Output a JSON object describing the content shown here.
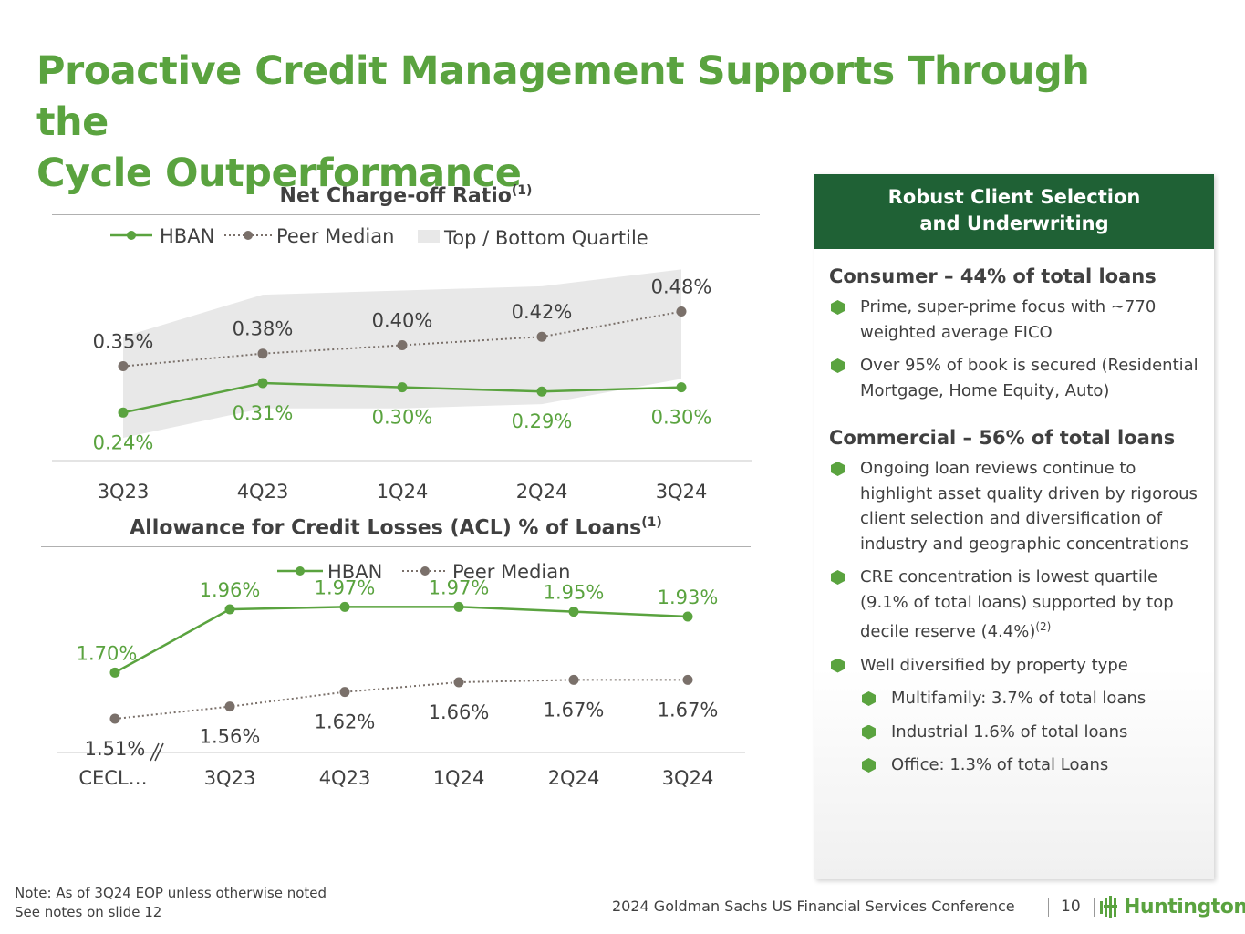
{
  "page": {
    "title_line1": "Proactive Credit Management Supports Through the",
    "title_line2": "Cycle Outperformance"
  },
  "colors": {
    "green": "#5aa33f",
    "dark_green": "#1f6135",
    "peer": "#7a706a",
    "band": "#e8e8e8"
  },
  "chart_data": [
    {
      "type": "line",
      "title": "Net Charge-off Ratio",
      "title_sup": "(1)",
      "categories": [
        "3Q23",
        "4Q23",
        "1Q24",
        "2Q24",
        "3Q24"
      ],
      "legend": [
        "HBAN",
        "Peer Median",
        "Top / Bottom Quartile"
      ],
      "series": [
        {
          "name": "HBAN",
          "values": [
            0.24,
            0.31,
            0.3,
            0.29,
            0.3
          ],
          "labels": [
            "0.24%",
            "0.31%",
            "0.30%",
            "0.29%",
            "0.30%"
          ]
        },
        {
          "name": "Peer Median",
          "values": [
            0.35,
            0.38,
            0.4,
            0.42,
            0.48
          ],
          "labels": [
            "0.35%",
            "0.38%",
            "0.40%",
            "0.42%",
            "0.48%"
          ]
        }
      ],
      "band": {
        "name": "Top / Bottom Quartile",
        "upper": [
          0.42,
          0.52,
          0.53,
          0.54,
          0.58
        ],
        "lower": [
          0.18,
          0.25,
          0.25,
          0.26,
          0.32
        ]
      },
      "ylim": [
        0.05,
        0.7
      ]
    },
    {
      "type": "line",
      "title": "Allowance for Credit Losses (ACL) % of Loans",
      "title_sup": "(1)",
      "categories": [
        "CECL…",
        "3Q23",
        "4Q23",
        "1Q24",
        "2Q24",
        "3Q24"
      ],
      "legend": [
        "HBAN",
        "Peer Median"
      ],
      "series": [
        {
          "name": "HBAN",
          "values": [
            1.7,
            1.96,
            1.97,
            1.97,
            1.95,
            1.93
          ],
          "labels": [
            "1.70%",
            "1.96%",
            "1.97%",
            "1.97%",
            "1.95%",
            "1.93%"
          ]
        },
        {
          "name": "Peer Median",
          "values": [
            1.51,
            1.56,
            1.62,
            1.66,
            1.67,
            1.67
          ],
          "labels": [
            "1.51%",
            "1.56%",
            "1.62%",
            "1.66%",
            "1.67%",
            "1.67%"
          ]
        }
      ],
      "ylim": [
        1.3,
        2.2
      ],
      "axis_break": true
    }
  ],
  "panel": {
    "header_line1": "Robust Client Selection",
    "header_line2": "and Underwriting",
    "consumer_title": "Consumer – 44% of total loans",
    "consumer_bullets": [
      "Prime, super-prime focus with ~770 weighted average FICO",
      "Over 95% of book is secured (Residential Mortgage, Home Equity, Auto)"
    ],
    "commercial_title": "Commercial – 56% of total loans",
    "commercial_b1": "Ongoing loan reviews continue to highlight asset quality driven by rigorous client selection and diversification of industry and geographic concentrations",
    "commercial_b2": "CRE concentration is lowest quartile (9.1% of total loans) supported by top decile reserve (4.4%)",
    "commercial_b2_sup": "(2)",
    "commercial_b3": "Well diversified by property type",
    "sub_bullets": [
      "Multifamily: 3.7% of total loans",
      "Industrial  1.6% of total loans",
      "Office: 1.3% of total Loans"
    ]
  },
  "footer": {
    "note1": "Note: As of 3Q24 EOP unless otherwise noted",
    "note2": "See notes on slide 12",
    "conference": "2024 Goldman Sachs US Financial Services Conference",
    "page_number": "10",
    "logo_text": "Huntington",
    "logo_icon": "huntington-logo-icon"
  }
}
